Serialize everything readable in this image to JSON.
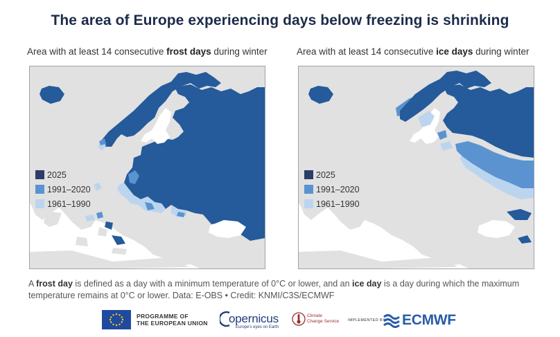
{
  "title": "The area of Europe experiencing days below freezing is shrinking",
  "left_map": {
    "subtitle_before": "Area with at least 14 consecutive ",
    "subtitle_bold": "frost days",
    "subtitle_after": " during winter"
  },
  "right_map": {
    "subtitle_before": "Area with at least 14 consecutive ",
    "subtitle_bold": "ice days",
    "subtitle_after": " during winter"
  },
  "legend": [
    {
      "label": "2025",
      "color": "#2c3e66"
    },
    {
      "label": "1991–2020",
      "color": "#5a93d0"
    },
    {
      "label": "1961–1990",
      "color": "#bcd5ef"
    }
  ],
  "colors": {
    "land": "#e1e1e1",
    "frost_2025": "#255a9b",
    "period_1991_2020": "#5a93d0",
    "period_1961_1990": "#bcd5ef"
  },
  "footnote": {
    "part1": "A ",
    "bold1": "frost day",
    "part2": " is defined as a day with a minimum temperature of 0°C or lower, and an ",
    "bold2": "ice day",
    "part3": " is a day during which the maximum temperature remains at 0°C or lower. Data: E-OBS • Credit: KNMI/C3S/ECMWF"
  },
  "logos": {
    "eu_line1": "PROGRAMME OF",
    "eu_line2": "THE EUROPEAN UNION",
    "copernicus": "opernicus",
    "copernicus_tagline": "Europe's eyes on Earth",
    "c3s_line1": "Climate",
    "c3s_line2": "Change Service",
    "implemented_by": "IMPLEMENTED BY",
    "ecmwf": "ECMWF"
  }
}
